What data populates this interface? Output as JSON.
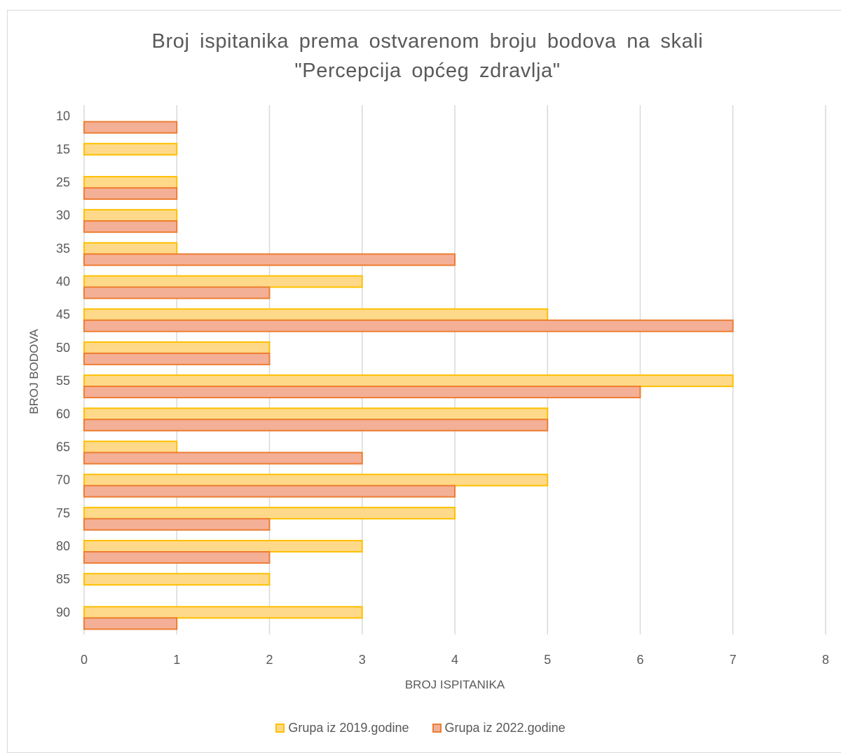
{
  "chart_data": {
    "type": "bar",
    "orientation": "horizontal",
    "title_lines": [
      "Broj ispitanika prema ostvarenom broju bodova na skali",
      "\"Percepcija općeg zdravlja\""
    ],
    "xlabel": "BROJ ISPITANIKA",
    "ylabel": "BROJ BODOVA",
    "xlim": [
      0,
      8
    ],
    "xticks": [
      "0",
      "1",
      "2",
      "3",
      "4",
      "5",
      "6",
      "7",
      "8"
    ],
    "categories": [
      "10",
      "15",
      "25",
      "30",
      "35",
      "40",
      "45",
      "50",
      "55",
      "60",
      "65",
      "70",
      "75",
      "80",
      "85",
      "90"
    ],
    "series": [
      {
        "name": "Grupa iz 2019.godine",
        "color": "#FFD98A",
        "border": "#FFC000",
        "values": [
          0,
          1,
          1,
          1,
          1,
          3,
          5,
          2,
          7,
          5,
          1,
          5,
          4,
          3,
          2,
          3
        ]
      },
      {
        "name": "Grupa iz 2022.godine",
        "color": "#F4B097",
        "border": "#ED7D31",
        "values": [
          1,
          0,
          1,
          1,
          4,
          2,
          7,
          2,
          6,
          5,
          3,
          4,
          2,
          2,
          0,
          1
        ]
      }
    ],
    "grid": true,
    "legend_position": "bottom"
  }
}
